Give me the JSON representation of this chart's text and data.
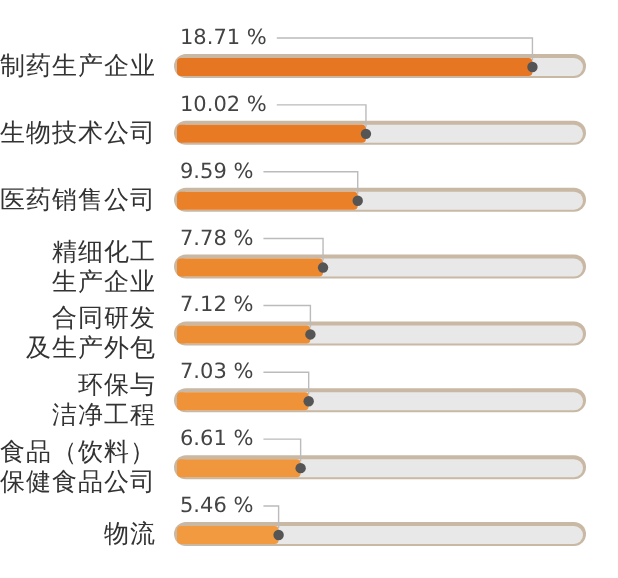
{
  "chart_data": {
    "type": "bar",
    "orientation": "horizontal",
    "categories": [
      "制药生产企业",
      "生物技术公司",
      "医药销售公司",
      "精细化工生产企业",
      "合同研发及生产外包",
      "环保与洁净工程",
      "食品（饮料）保健食品公司",
      "物流"
    ],
    "values": [
      18.71,
      10.02,
      9.59,
      7.78,
      7.12,
      7.03,
      6.61,
      5.46
    ],
    "value_labels": [
      "18.71 %",
      "10.02 %",
      "9.59 %",
      "7.78 %",
      "7.12 %",
      "7.03 %",
      "6.61 %",
      "5.46 %"
    ],
    "colors": [
      "#e67622",
      "#e87a24",
      "#ea8028",
      "#ec882e",
      "#ee8e34",
      "#ef9238",
      "#f0963c",
      "#f19a40"
    ]
  }
}
